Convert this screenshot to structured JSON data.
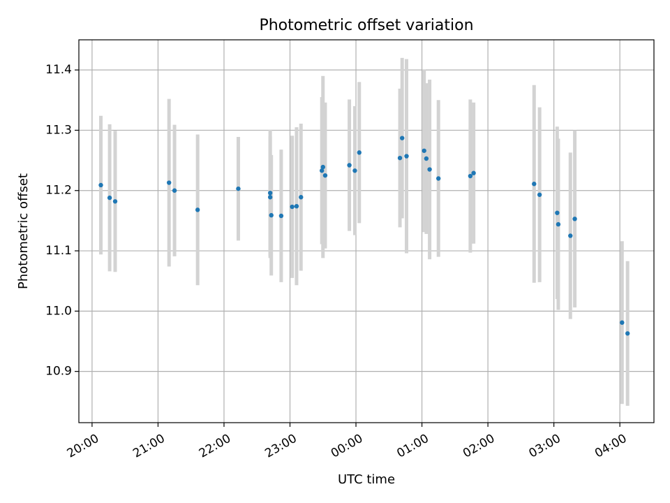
{
  "chart_data": {
    "type": "scatter",
    "title": "Photometric offset variation",
    "xlabel": "UTC time",
    "ylabel": "Photometric offset",
    "x_unit": "UTC, evening 20:00 through 04:00 next day",
    "xlim": [
      "19:48",
      "04:31"
    ],
    "ylim": [
      10.815,
      11.45
    ],
    "grid": true,
    "x_ticks": [
      "20:00",
      "21:00",
      "22:00",
      "23:00",
      "00:00",
      "01:00",
      "02:00",
      "03:00",
      "04:00"
    ],
    "y_ticks": [
      "10.9",
      "11.0",
      "11.1",
      "11.2",
      "11.3",
      "11.4"
    ],
    "colors": {
      "point": "#1f77b4",
      "errorbar": "#d3d3d3",
      "grid": "#b0b0b0"
    },
    "points": [
      {
        "x": "20:08",
        "y": 11.209,
        "err": 0.115
      },
      {
        "x": "20:16",
        "y": 11.188,
        "err": 0.122
      },
      {
        "x": "20:21",
        "y": 11.182,
        "err": 0.117
      },
      {
        "x": "21:10",
        "y": 11.213,
        "err": 0.139
      },
      {
        "x": "21:15",
        "y": 11.2,
        "err": 0.109
      },
      {
        "x": "21:36",
        "y": 11.168,
        "err": 0.125
      },
      {
        "x": "22:13",
        "y": 11.203,
        "err": 0.086
      },
      {
        "x": "22:42",
        "y": 11.196,
        "err": 0.105
      },
      {
        "x": "22:42",
        "y": 11.189,
        "err": 0.101
      },
      {
        "x": "22:43",
        "y": 11.159,
        "err": 0.1
      },
      {
        "x": "22:52",
        "y": 11.158,
        "err": 0.11
      },
      {
        "x": "23:02",
        "y": 11.173,
        "err": 0.118
      },
      {
        "x": "23:06",
        "y": 11.174,
        "err": 0.131
      },
      {
        "x": "23:10",
        "y": 11.189,
        "err": 0.122
      },
      {
        "x": "23:29",
        "y": 11.233,
        "err": 0.122
      },
      {
        "x": "23:30",
        "y": 11.239,
        "err": 0.151
      },
      {
        "x": "23:32",
        "y": 11.225,
        "err": 0.121
      },
      {
        "x": "23:54",
        "y": 11.242,
        "err": 0.109
      },
      {
        "x": "23:59",
        "y": 11.233,
        "err": 0.107
      },
      {
        "x": "00:03",
        "y": 11.263,
        "err": 0.117
      },
      {
        "x": "00:40",
        "y": 11.254,
        "err": 0.115
      },
      {
        "x": "00:42",
        "y": 11.287,
        "err": 0.133
      },
      {
        "x": "00:46",
        "y": 11.257,
        "err": 0.161
      },
      {
        "x": "01:02",
        "y": 11.266,
        "err": 0.135
      },
      {
        "x": "01:04",
        "y": 11.253,
        "err": 0.125
      },
      {
        "x": "01:07",
        "y": 11.235,
        "err": 0.149
      },
      {
        "x": "01:15",
        "y": 11.22,
        "err": 0.13
      },
      {
        "x": "01:44",
        "y": 11.224,
        "err": 0.127
      },
      {
        "x": "01:47",
        "y": 11.229,
        "err": 0.117
      },
      {
        "x": "02:42",
        "y": 11.211,
        "err": 0.164
      },
      {
        "x": "02:47",
        "y": 11.193,
        "err": 0.145
      },
      {
        "x": "03:03",
        "y": 11.163,
        "err": 0.143
      },
      {
        "x": "03:04",
        "y": 11.144,
        "err": 0.142
      },
      {
        "x": "03:15",
        "y": 11.125,
        "err": 0.138
      },
      {
        "x": "03:19",
        "y": 11.153,
        "err": 0.147
      },
      {
        "x": "04:02",
        "y": 10.981,
        "err": 0.135
      },
      {
        "x": "04:07",
        "y": 10.963,
        "err": 0.12
      }
    ]
  }
}
